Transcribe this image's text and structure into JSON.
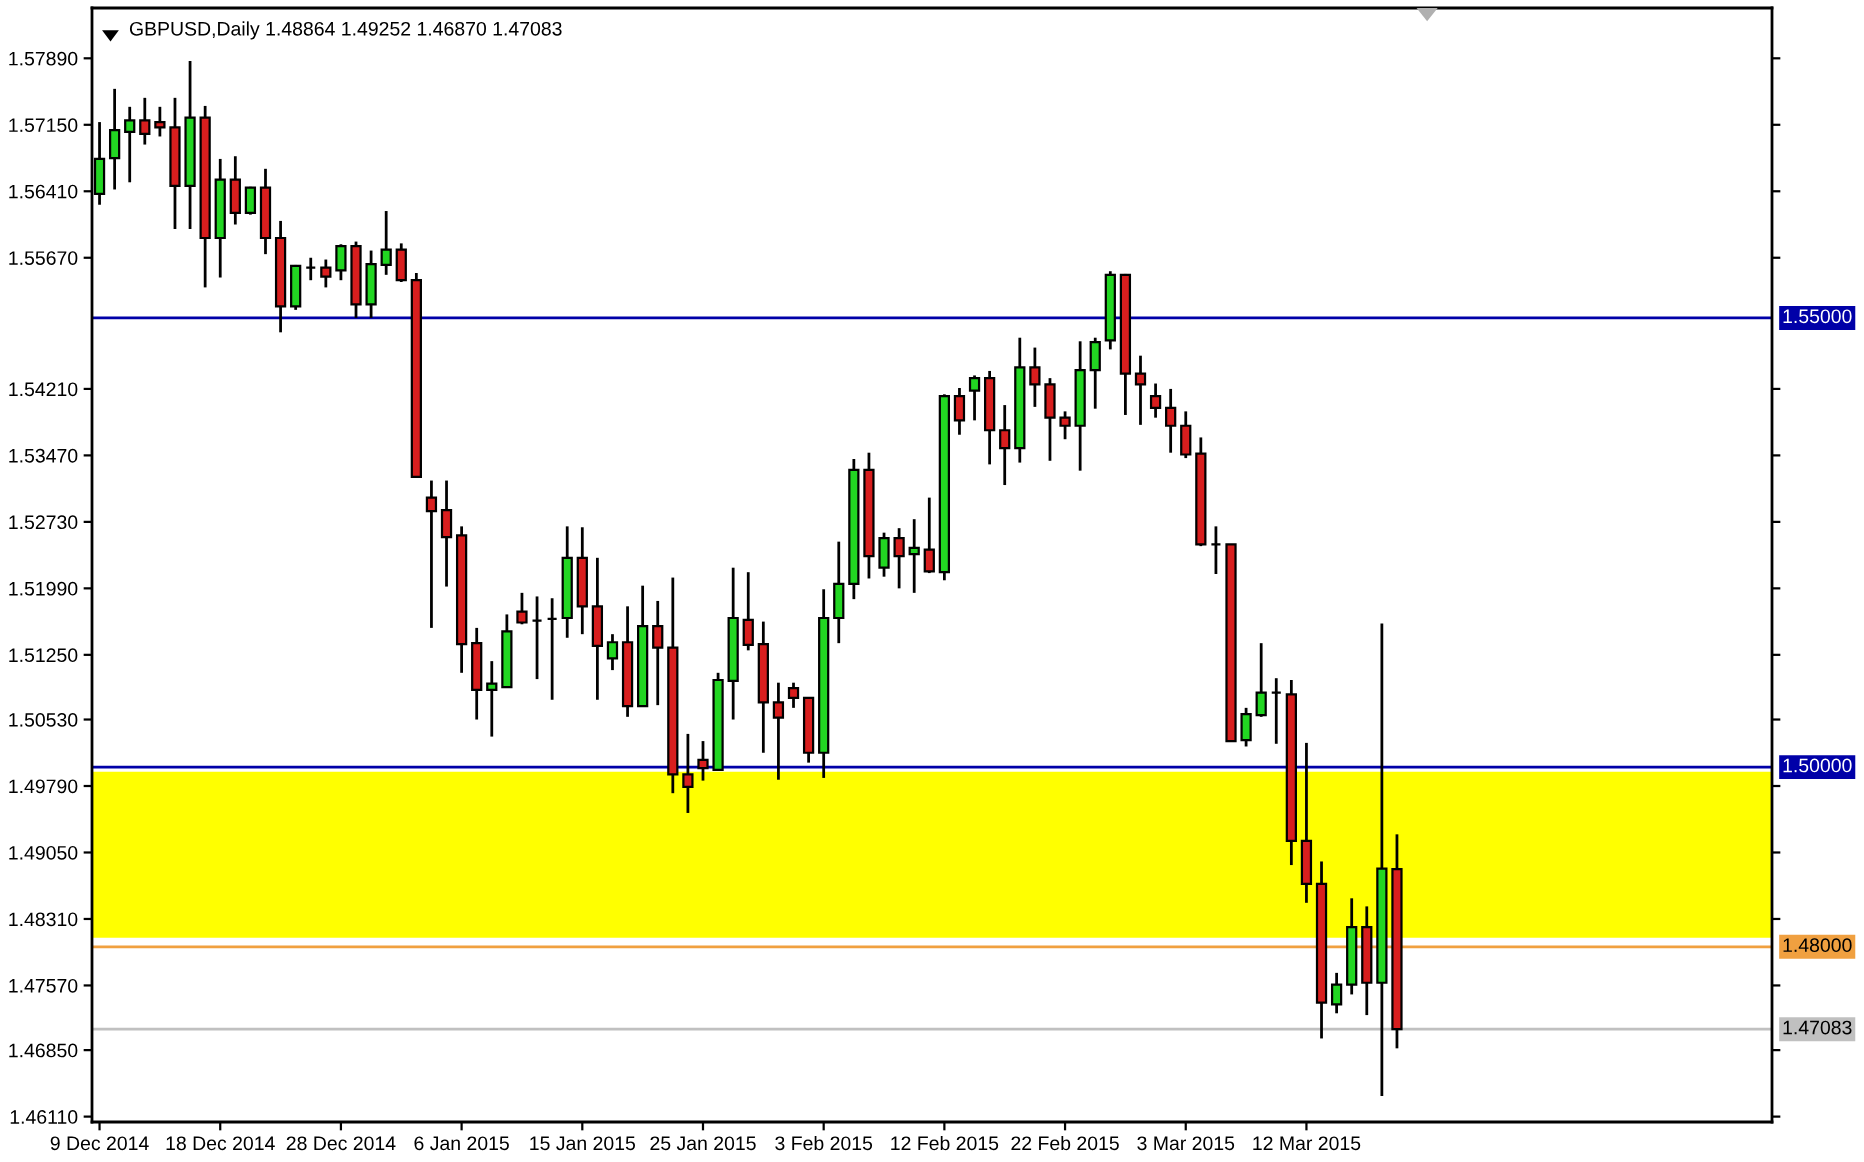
{
  "chart_data": {
    "type": "candlestick",
    "title": "GBPUSD,Daily 1.48864 1.49252 1.46870 1.47083",
    "categories": [
      "9 Dec 2014",
      null,
      null,
      null,
      null,
      null,
      null,
      null,
      "18 Dec 2014",
      null,
      null,
      null,
      null,
      null,
      null,
      null,
      "28 Dec 2014",
      null,
      null,
      null,
      null,
      null,
      null,
      null,
      "6 Jan 2015",
      null,
      null,
      null,
      null,
      null,
      null,
      null,
      "15 Jan 2015",
      null,
      null,
      null,
      null,
      null,
      null,
      null,
      "25 Jan 2015",
      null,
      null,
      null,
      null,
      null,
      null,
      null,
      "3 Feb 2015",
      null,
      null,
      null,
      null,
      null,
      null,
      null,
      "12 Feb 2015",
      null,
      null,
      null,
      null,
      null,
      null,
      null,
      "22 Feb 2015",
      null,
      null,
      null,
      null,
      null,
      null,
      null,
      "3 Mar 2015",
      null,
      null,
      null,
      null,
      null,
      null,
      null,
      "12 Mar 2015",
      null,
      null,
      null,
      null,
      null,
      null
    ],
    "ohlc": [
      [
        1.5638,
        1.5718,
        1.5626,
        1.5677
      ],
      [
        1.5678,
        1.5755,
        1.5643,
        1.5709
      ],
      [
        1.5707,
        1.5735,
        1.5651,
        1.572
      ],
      [
        1.572,
        1.5745,
        1.5693,
        1.5705
      ],
      [
        1.5718,
        1.5735,
        1.5702,
        1.5712
      ],
      [
        1.5712,
        1.5745,
        1.5599,
        1.5647
      ],
      [
        1.5647,
        1.5786,
        1.5599,
        1.5723
      ],
      [
        1.5723,
        1.5736,
        1.5534,
        1.5589
      ],
      [
        1.5589,
        1.5677,
        1.5545,
        1.5654
      ],
      [
        1.5654,
        1.568,
        1.5604,
        1.5617
      ],
      [
        1.5617,
        1.5646,
        1.5615,
        1.5645
      ],
      [
        1.5645,
        1.5666,
        1.5571,
        1.5589
      ],
      [
        1.5589,
        1.5608,
        1.5484,
        1.5513
      ],
      [
        1.5513,
        1.5559,
        1.5509,
        1.5558
      ],
      [
        1.5556,
        1.5567,
        1.5542,
        1.5556
      ],
      [
        1.5556,
        1.5565,
        1.5534,
        1.5546
      ],
      [
        1.5553,
        1.5582,
        1.5542,
        1.558
      ],
      [
        1.558,
        1.5585,
        1.55,
        1.5515
      ],
      [
        1.5515,
        1.5575,
        1.55,
        1.556
      ],
      [
        1.5559,
        1.5619,
        1.5548,
        1.5576
      ],
      [
        1.5576,
        1.5583,
        1.554,
        1.5542
      ],
      [
        1.5542,
        1.555,
        1.5323,
        1.5323
      ],
      [
        1.53,
        1.5319,
        1.5155,
        1.5285
      ],
      [
        1.5286,
        1.5319,
        1.5201,
        1.5256
      ],
      [
        1.5258,
        1.5268,
        1.5105,
        1.5137
      ],
      [
        1.5138,
        1.5155,
        1.5053,
        1.5086
      ],
      [
        1.5086,
        1.5118,
        1.5034,
        1.5093
      ],
      [
        1.5089,
        1.517,
        1.5089,
        1.5151
      ],
      [
        1.5173,
        1.5194,
        1.5159,
        1.5161
      ],
      [
        1.5163,
        1.519,
        1.5098,
        1.5163
      ],
      [
        1.5165,
        1.5188,
        1.5075,
        1.5165
      ],
      [
        1.5166,
        1.5268,
        1.5144,
        1.5233
      ],
      [
        1.5233,
        1.5267,
        1.5148,
        1.5179
      ],
      [
        1.5179,
        1.5233,
        1.5075,
        1.5135
      ],
      [
        1.5121,
        1.5148,
        1.5108,
        1.5139
      ],
      [
        1.5139,
        1.5179,
        1.5056,
        1.5068
      ],
      [
        1.5068,
        1.5202,
        1.5068,
        1.5157
      ],
      [
        1.5157,
        1.5185,
        1.5069,
        1.5133
      ],
      [
        1.5133,
        1.5211,
        1.4971,
        1.4992
      ],
      [
        1.4992,
        1.5037,
        1.4949,
        1.4978
      ],
      [
        1.5008,
        1.5029,
        1.4985,
        1.4999
      ],
      [
        1.4997,
        1.5105,
        1.4997,
        1.5097
      ],
      [
        1.5096,
        1.5222,
        1.5053,
        1.5166
      ],
      [
        1.5164,
        1.5217,
        1.513,
        1.5136
      ],
      [
        1.5137,
        1.5162,
        1.5016,
        1.5072
      ],
      [
        1.5072,
        1.5094,
        1.4986,
        1.5055
      ],
      [
        1.5088,
        1.5094,
        1.5066,
        1.5077
      ],
      [
        1.5077,
        1.5077,
        1.5005,
        1.5016
      ],
      [
        1.5016,
        1.5198,
        1.4988,
        1.5166
      ],
      [
        1.5166,
        1.5251,
        1.5138,
        1.5204
      ],
      [
        1.5204,
        1.5343,
        1.5187,
        1.5331
      ],
      [
        1.5331,
        1.535,
        1.521,
        1.5235
      ],
      [
        1.5222,
        1.5261,
        1.5212,
        1.5255
      ],
      [
        1.5255,
        1.5266,
        1.5199,
        1.5235
      ],
      [
        1.5237,
        1.5276,
        1.5194,
        1.5244
      ],
      [
        1.5242,
        1.53,
        1.5216,
        1.5218
      ],
      [
        1.5217,
        1.5415,
        1.5208,
        1.5413
      ],
      [
        1.5413,
        1.5422,
        1.537,
        1.5386
      ],
      [
        1.5419,
        1.5436,
        1.5386,
        1.5433
      ],
      [
        1.5433,
        1.5441,
        1.5337,
        1.5375
      ],
      [
        1.5375,
        1.5403,
        1.5314,
        1.5355
      ],
      [
        1.5355,
        1.5478,
        1.5339,
        1.5445
      ],
      [
        1.5445,
        1.5467,
        1.5401,
        1.5426
      ],
      [
        1.5426,
        1.5433,
        1.5341,
        1.5389
      ],
      [
        1.5389,
        1.5396,
        1.5365,
        1.538
      ],
      [
        1.538,
        1.5474,
        1.533,
        1.5442
      ],
      [
        1.5442,
        1.5478,
        1.5399,
        1.5473
      ],
      [
        1.5475,
        1.5552,
        1.5465,
        1.5548
      ],
      [
        1.5548,
        1.5549,
        1.5392,
        1.5438
      ],
      [
        1.5438,
        1.5458,
        1.5381,
        1.5426
      ],
      [
        1.5413,
        1.5427,
        1.5389,
        1.54
      ],
      [
        1.54,
        1.5421,
        1.535,
        1.538
      ],
      [
        1.538,
        1.5396,
        1.5344,
        1.5348
      ],
      [
        1.5349,
        1.5367,
        1.5246,
        1.5248
      ],
      [
        1.5248,
        1.5268,
        1.5215,
        1.5248
      ],
      [
        1.5248,
        1.5248,
        1.5029,
        1.5029
      ],
      [
        1.503,
        1.5066,
        1.5023,
        1.5059
      ],
      [
        1.5058,
        1.5138,
        1.5056,
        1.5083
      ],
      [
        1.5083,
        1.5099,
        1.5026,
        1.5083
      ],
      [
        1.5081,
        1.5097,
        1.4891,
        1.4918
      ],
      [
        1.4918,
        1.5027,
        1.4849,
        1.487
      ],
      [
        1.487,
        1.4895,
        1.4698,
        1.4738
      ],
      [
        1.4736,
        1.4771,
        1.4726,
        1.4758
      ],
      [
        1.4758,
        1.4854,
        1.4747,
        1.4822
      ],
      [
        1.4822,
        1.4845,
        1.4724,
        1.476
      ],
      [
        1.476,
        1.516,
        1.4634,
        1.4887
      ],
      [
        1.48864,
        1.49252,
        1.4687,
        1.47083
      ]
    ],
    "colors": [
      "#22d622",
      "#22d622",
      "#22d622",
      "#d81e1e",
      "#d81e1e",
      "#d81e1e",
      "#22d622",
      "#d81e1e",
      "#22d622",
      "#d81e1e",
      "#22d622",
      "#d81e1e",
      "#d81e1e",
      "#22d622",
      "#000000",
      "#d81e1e",
      "#22d622",
      "#d81e1e",
      "#22d622",
      "#22d622",
      "#d81e1e",
      "#d81e1e",
      "#d81e1e",
      "#d81e1e",
      "#d81e1e",
      "#d81e1e",
      "#22d622",
      "#22d622",
      "#d81e1e",
      "#000000",
      "#000000",
      "#22d622",
      "#d81e1e",
      "#d81e1e",
      "#22d622",
      "#d81e1e",
      "#22d622",
      "#d81e1e",
      "#d81e1e",
      "#d81e1e",
      "#d81e1e",
      "#22d622",
      "#22d622",
      "#d81e1e",
      "#d81e1e",
      "#d81e1e",
      "#d81e1e",
      "#d81e1e",
      "#22d622",
      "#22d622",
      "#22d622",
      "#d81e1e",
      "#22d622",
      "#d81e1e",
      "#22d622",
      "#d81e1e",
      "#22d622",
      "#d81e1e",
      "#22d622",
      "#d81e1e",
      "#d81e1e",
      "#22d622",
      "#d81e1e",
      "#d81e1e",
      "#d81e1e",
      "#22d622",
      "#22d622",
      "#22d622",
      "#d81e1e",
      "#d81e1e",
      "#d81e1e",
      "#d81e1e",
      "#d81e1e",
      "#d81e1e",
      "#000000",
      "#d81e1e",
      "#22d622",
      "#22d622",
      "#000000",
      "#d81e1e",
      "#d81e1e",
      "#d81e1e",
      "#22d622",
      "#22d622",
      "#d81e1e",
      "#22d622",
      "#d81e1e"
    ],
    "ylim": [
      1.4605,
      1.5845
    ],
    "yticks": [
      {
        "value": 1.5789,
        "label": "1.57890"
      },
      {
        "value": 1.5715,
        "label": "1.57150"
      },
      {
        "value": 1.5641,
        "label": "1.56410"
      },
      {
        "value": 1.5567,
        "label": "1.55670"
      },
      {
        "value": 1.5421,
        "label": "1.54210"
      },
      {
        "value": 1.5347,
        "label": "1.53470"
      },
      {
        "value": 1.5273,
        "label": "1.52730"
      },
      {
        "value": 1.5199,
        "label": "1.51990"
      },
      {
        "value": 1.5125,
        "label": "1.51250"
      },
      {
        "value": 1.5053,
        "label": "1.50530"
      },
      {
        "value": 1.4979,
        "label": "1.49790"
      },
      {
        "value": 1.4905,
        "label": "1.49050"
      },
      {
        "value": 1.4831,
        "label": "1.48310"
      },
      {
        "value": 1.4757,
        "label": "1.47570"
      },
      {
        "value": 1.4685,
        "label": "1.46850"
      },
      {
        "value": 1.4611,
        "label": "1.46110"
      }
    ],
    "ref_lines": [
      {
        "axis": "y",
        "value": 1.55,
        "label": "1.55000",
        "color": "#0000a8"
      },
      {
        "axis": "y",
        "value": 1.5,
        "label": "1.50000",
        "color": "#0000a8"
      },
      {
        "axis": "y",
        "value": 1.48,
        "label": "1.48000",
        "color": "#f0a040"
      },
      {
        "axis": "y",
        "value": 1.47083,
        "label": "1.47083",
        "color": "#c0c0c0"
      }
    ],
    "bands": [
      {
        "axis": "y",
        "from": 1.481,
        "to": 1.4995,
        "color": "#ffff00"
      }
    ]
  }
}
